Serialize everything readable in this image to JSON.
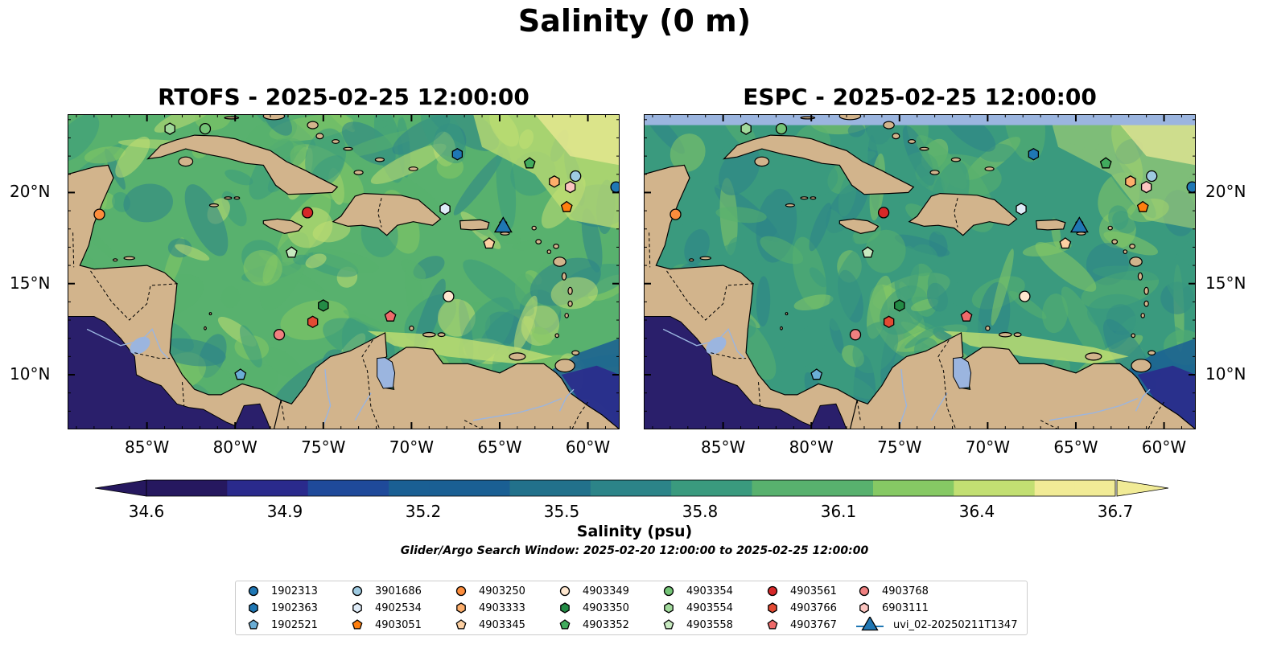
{
  "suptitle": "Salinity (0 m)",
  "panels": [
    {
      "title": "RTOFS - 2025-02-25 12:00:00",
      "model": "rtofs"
    },
    {
      "title": "ESPC - 2025-02-25 12:00:00",
      "model": "espc"
    }
  ],
  "map": {
    "lon_range": [
      -89.5,
      -58.2
    ],
    "lat_range": [
      7.0,
      24.3
    ],
    "x_ticks": [
      "85°W",
      "80°W",
      "75°W",
      "70°W",
      "65°W",
      "60°W"
    ],
    "x_tick_values": [
      -85,
      -80,
      -75,
      -70,
      -65,
      -60
    ],
    "y_ticks": [
      "20°N",
      "15°N",
      "10°N"
    ],
    "y_tick_values": [
      20,
      15,
      10
    ],
    "land_color": "#d2b48c",
    "lake_color": "#9bb5df",
    "pacific_color": "#2a1f6b"
  },
  "colorbar": {
    "label": "Salinity (psu)",
    "ticks": [
      "34.6",
      "34.9",
      "35.2",
      "35.5",
      "35.8",
      "36.1",
      "36.4",
      "36.7"
    ],
    "min": 34.6,
    "max": 36.7,
    "colormap": [
      "#26185f",
      "#2a2a8c",
      "#1f4a9a",
      "#1a5f93",
      "#22718b",
      "#2c8488",
      "#3a9a7e",
      "#58b16e",
      "#86c964",
      "#c2df72",
      "#f1eb96"
    ],
    "extend": "both"
  },
  "window_text": "Glider/Argo Search Window: 2025-02-20 12:00:00 to 2025-02-25 12:00:00",
  "legend": [
    {
      "id": "1902313",
      "marker": "circle",
      "color": "#1f77b4"
    },
    {
      "id": "1902363",
      "marker": "hexagon",
      "color": "#1f77b4"
    },
    {
      "id": "1902521",
      "marker": "pentagon",
      "color": "#6baed6"
    },
    {
      "id": "3901686",
      "marker": "circle",
      "color": "#9ecae1"
    },
    {
      "id": "4902534",
      "marker": "hexagon",
      "color": "#deebf7"
    },
    {
      "id": "4903051",
      "marker": "pentagon",
      "color": "#ff7f0e"
    },
    {
      "id": "4903250",
      "marker": "circle",
      "color": "#fd8d3c"
    },
    {
      "id": "4903333",
      "marker": "hexagon",
      "color": "#fdae6b"
    },
    {
      "id": "4903345",
      "marker": "pentagon",
      "color": "#fdd0a2"
    },
    {
      "id": "4903349",
      "marker": "circle",
      "color": "#fee6ce"
    },
    {
      "id": "4903350",
      "marker": "hexagon",
      "color": "#238b45"
    },
    {
      "id": "4903352",
      "marker": "pentagon",
      "color": "#41ab5d"
    },
    {
      "id": "4903354",
      "marker": "circle",
      "color": "#74c476"
    },
    {
      "id": "4903554",
      "marker": "hexagon",
      "color": "#a1d99b"
    },
    {
      "id": "4903558",
      "marker": "pentagon",
      "color": "#c7e9c0"
    },
    {
      "id": "4903561",
      "marker": "circle",
      "color": "#d62728"
    },
    {
      "id": "4903766",
      "marker": "hexagon",
      "color": "#e34a33"
    },
    {
      "id": "4903767",
      "marker": "pentagon",
      "color": "#ef6a6a"
    },
    {
      "id": "4903768",
      "marker": "circle",
      "color": "#f08080"
    },
    {
      "id": "6903111",
      "marker": "hexagon",
      "color": "#fcc5c0"
    },
    {
      "id": "uvi_02-20250211T1347",
      "marker": "triangle",
      "color": "#1f77b4"
    }
  ],
  "argo_floats": [
    {
      "id": "1902313",
      "lon": -58.4,
      "lat": 20.3
    },
    {
      "id": "1902363",
      "lon": -67.4,
      "lat": 22.1
    },
    {
      "id": "1902521",
      "lon": -79.7,
      "lat": 10.0
    },
    {
      "id": "3901686",
      "lon": -60.7,
      "lat": 20.9
    },
    {
      "id": "4902534",
      "lon": -68.1,
      "lat": 19.1
    },
    {
      "id": "4903051",
      "lon": -61.2,
      "lat": 19.2
    },
    {
      "id": "4903250",
      "lon": -87.7,
      "lat": 18.8
    },
    {
      "id": "4903333",
      "lon": -61.9,
      "lat": 20.6
    },
    {
      "id": "4903345",
      "lon": -65.6,
      "lat": 17.2
    },
    {
      "id": "4903349",
      "lon": -67.9,
      "lat": 14.3
    },
    {
      "id": "4903350",
      "lon": -75.0,
      "lat": 13.8
    },
    {
      "id": "4903352",
      "lon": -63.3,
      "lat": 21.6
    },
    {
      "id": "4903354",
      "lon": -81.7,
      "lat": 23.5
    },
    {
      "id": "4903554",
      "lon": -83.7,
      "lat": 23.5
    },
    {
      "id": "4903558",
      "lon": -76.8,
      "lat": 16.7
    },
    {
      "id": "4903561",
      "lon": -75.9,
      "lat": 18.9
    },
    {
      "id": "4903766",
      "lon": -75.6,
      "lat": 12.9
    },
    {
      "id": "4903767",
      "lon": -71.2,
      "lat": 13.2
    },
    {
      "id": "4903768",
      "lon": -77.5,
      "lat": 12.2
    },
    {
      "id": "6903111",
      "lon": -61.0,
      "lat": 20.3
    }
  ],
  "glider": {
    "id": "uvi_02-20250211T1347",
    "lon": -64.8,
    "lat": 18.1
  }
}
